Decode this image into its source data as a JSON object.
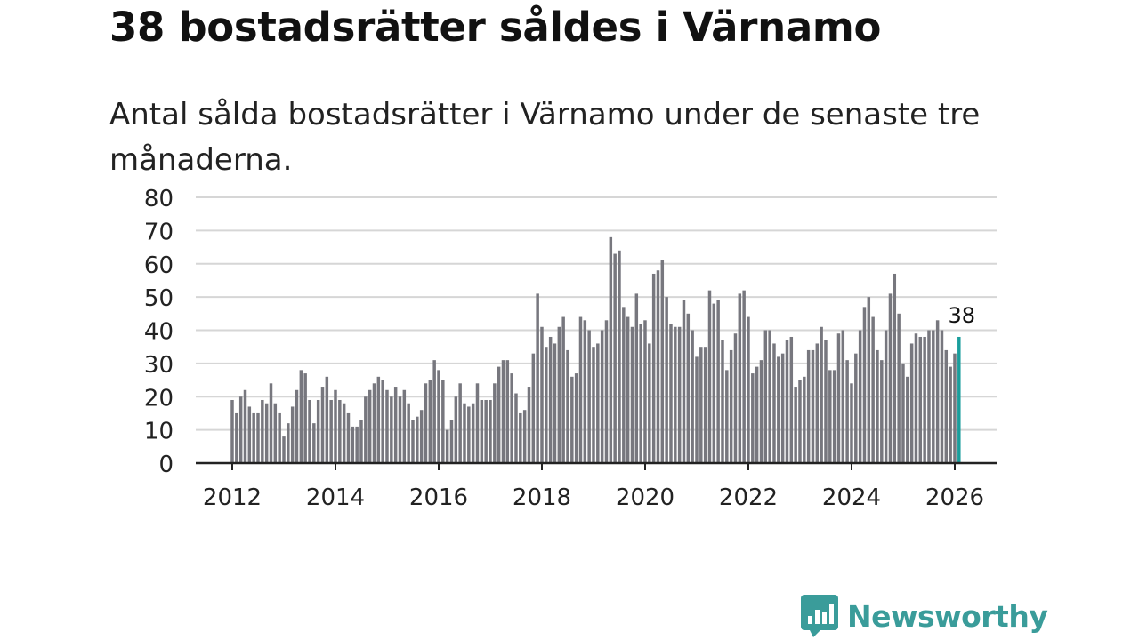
{
  "title": "38 bostadsrätter såldes i Värnamo",
  "subtitle": "Antal sålda bostadsrätter i Värnamo under de senaste tre månaderna.",
  "brand": "Newsworthy",
  "colors": {
    "bar": "#77777e",
    "highlight": "#1a9e9c",
    "grid": "#d6d6d6",
    "axis": "#222222",
    "brand": "#3a9c9a"
  },
  "chart_data": {
    "type": "bar",
    "title": "38 bostadsrätter såldes i Värnamo",
    "xlabel": "",
    "ylabel": "",
    "ylim": [
      0,
      80
    ],
    "yticks": [
      0,
      10,
      20,
      30,
      40,
      50,
      60,
      70,
      80
    ],
    "xticks": [
      2012,
      2014,
      2016,
      2018,
      2020,
      2022,
      2024,
      2026
    ],
    "x_start": 2012.0,
    "x_step": 0.08333,
    "highlight_last": true,
    "last_label": "38",
    "values": [
      19,
      15,
      20,
      22,
      17,
      15,
      15,
      19,
      18,
      24,
      18,
      15,
      8,
      12,
      17,
      22,
      28,
      27,
      19,
      12,
      19,
      23,
      26,
      19,
      22,
      19,
      18,
      15,
      11,
      11,
      13,
      20,
      22,
      24,
      26,
      25,
      22,
      20,
      23,
      20,
      22,
      18,
      13,
      14,
      16,
      24,
      25,
      31,
      28,
      25,
      10,
      13,
      20,
      24,
      18,
      17,
      18,
      24,
      19,
      19,
      19,
      24,
      29,
      31,
      31,
      27,
      21,
      15,
      16,
      23,
      33,
      51,
      41,
      35,
      38,
      36,
      41,
      44,
      34,
      26,
      27,
      44,
      43,
      40,
      35,
      36,
      40,
      43,
      68,
      63,
      64,
      47,
      44,
      41,
      51,
      42,
      43,
      36,
      57,
      58,
      61,
      50,
      42,
      41,
      41,
      49,
      45,
      40,
      32,
      35,
      35,
      52,
      48,
      49,
      37,
      28,
      34,
      39,
      51,
      52,
      44,
      27,
      29,
      31,
      40,
      40,
      36,
      32,
      33,
      37,
      38,
      23,
      25,
      26,
      34,
      34,
      36,
      41,
      37,
      28,
      28,
      39,
      40,
      31,
      24,
      33,
      40,
      47,
      50,
      44,
      34,
      31,
      40,
      51,
      57,
      45,
      30,
      26,
      36,
      39,
      38,
      38,
      40,
      40,
      43,
      40,
      34,
      29,
      33,
      38
    ]
  }
}
